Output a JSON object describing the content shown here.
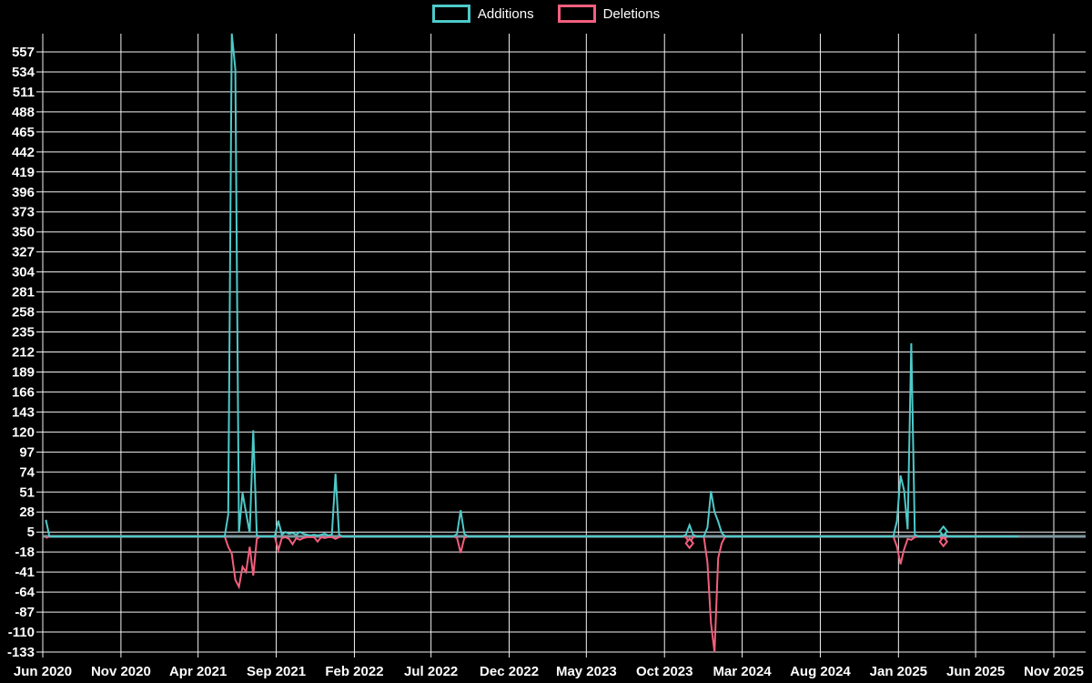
{
  "legend": {
    "items": [
      {
        "label": "Additions",
        "color": "#4ec9c9"
      },
      {
        "label": "Deletions",
        "color": "#f25f7d"
      }
    ]
  },
  "chart_data": {
    "type": "line",
    "title": "",
    "xlabel": "",
    "ylabel": "",
    "x_unit": "week",
    "x_start": "2020-06-07",
    "x_end": "2025-08-24",
    "default_value": 0,
    "grid": true,
    "legend_position": "top-center",
    "ylim": [
      -140,
      580
    ],
    "y_ticks": [
      557,
      534,
      511,
      488,
      465,
      442,
      419,
      396,
      373,
      350,
      327,
      304,
      281,
      258,
      235,
      212,
      189,
      166,
      143,
      120,
      97,
      74,
      51,
      28,
      5,
      -18,
      -41,
      -64,
      -87,
      -110,
      -133
    ],
    "x_ticks": [
      "Jun 2020",
      "Nov 2020",
      "Apr 2021",
      "Sep 2021",
      "Feb 2022",
      "Jul 2022",
      "Dec 2022",
      "May 2023",
      "Oct 2023",
      "Mar 2024",
      "Aug 2024",
      "Jan 2025",
      "Jun 2025",
      "Nov 2025"
    ],
    "series": [
      {
        "name": "Additions",
        "color": "#4ec9c9"
      },
      {
        "name": "Deletions",
        "color": "#f25f7d"
      }
    ],
    "nonzero_weeks": [
      {
        "date": "2020-06-07",
        "additions": 19,
        "deletions": -2
      },
      {
        "date": "2021-05-30",
        "additions": 25,
        "deletions": -12
      },
      {
        "date": "2021-06-06",
        "additions": 578,
        "deletions": -20
      },
      {
        "date": "2021-06-13",
        "additions": 537,
        "deletions": -50
      },
      {
        "date": "2021-06-20",
        "additions": 5,
        "deletions": -58
      },
      {
        "date": "2021-06-27",
        "additions": 50,
        "deletions": -35
      },
      {
        "date": "2021-07-04",
        "additions": 27,
        "deletions": -41
      },
      {
        "date": "2021-07-11",
        "additions": 4,
        "deletions": -12
      },
      {
        "date": "2021-07-18",
        "additions": 122,
        "deletions": -45
      },
      {
        "date": "2021-07-25",
        "additions": 1,
        "deletions": -3
      },
      {
        "date": "2021-09-05",
        "additions": 18,
        "deletions": -16
      },
      {
        "date": "2021-09-12",
        "additions": 2,
        "deletions": -2
      },
      {
        "date": "2021-09-19",
        "additions": 5,
        "deletions": -1
      },
      {
        "date": "2021-09-26",
        "additions": 3,
        "deletions": -3
      },
      {
        "date": "2021-10-03",
        "additions": 4,
        "deletions": -9
      },
      {
        "date": "2021-10-10",
        "additions": 2,
        "deletions": -2
      },
      {
        "date": "2021-10-17",
        "additions": 5,
        "deletions": -4
      },
      {
        "date": "2021-10-24",
        "additions": 3,
        "deletions": -2
      },
      {
        "date": "2021-10-31",
        "additions": 2,
        "deletions": -1
      },
      {
        "date": "2021-11-07",
        "additions": 1,
        "deletions": -1
      },
      {
        "date": "2021-11-14",
        "additions": 2,
        "deletions": -1
      },
      {
        "date": "2021-11-21",
        "additions": 1,
        "deletions": -6
      },
      {
        "date": "2021-11-28",
        "additions": 2,
        "deletions": -1
      },
      {
        "date": "2021-12-05",
        "additions": 3,
        "deletions": -2
      },
      {
        "date": "2021-12-12",
        "additions": 1,
        "deletions": -1
      },
      {
        "date": "2021-12-19",
        "additions": 2,
        "deletions": -1
      },
      {
        "date": "2021-12-26",
        "additions": 72,
        "deletions": -3
      },
      {
        "date": "2022-01-02",
        "additions": 2,
        "deletions": -1
      },
      {
        "date": "2022-08-21",
        "additions": 3,
        "deletions": -2
      },
      {
        "date": "2022-08-28",
        "additions": 30,
        "deletions": -19
      },
      {
        "date": "2022-09-04",
        "additions": 3,
        "deletions": -2
      },
      {
        "date": "2023-11-12",
        "additions": 2,
        "deletions": -1
      },
      {
        "date": "2023-11-19",
        "additions": 13,
        "deletions": -8
      },
      {
        "date": "2023-11-26",
        "additions": 2,
        "deletions": -1
      },
      {
        "date": "2023-12-24",
        "additions": 10,
        "deletions": -30
      },
      {
        "date": "2023-12-31",
        "additions": 52,
        "deletions": -100
      },
      {
        "date": "2024-01-07",
        "additions": 28,
        "deletions": -133
      },
      {
        "date": "2024-01-14",
        "additions": 17,
        "deletions": -25
      },
      {
        "date": "2024-01-21",
        "additions": 4,
        "deletions": -8
      },
      {
        "date": "2024-12-29",
        "additions": 18,
        "deletions": -12
      },
      {
        "date": "2025-01-05",
        "additions": 70,
        "deletions": -32
      },
      {
        "date": "2025-01-12",
        "additions": 53,
        "deletions": -15
      },
      {
        "date": "2025-01-19",
        "additions": 8,
        "deletions": -3
      },
      {
        "date": "2025-01-26",
        "additions": 222,
        "deletions": -4
      },
      {
        "date": "2025-02-02",
        "additions": 2,
        "deletions": -1
      },
      {
        "date": "2025-03-30",
        "additions": 6,
        "deletions": -6
      }
    ],
    "markers": [
      {
        "date": "2023-11-19",
        "series": "Deletions",
        "value": -8
      },
      {
        "date": "2025-03-30",
        "series": "Additions",
        "value": 6
      },
      {
        "date": "2025-03-30",
        "series": "Deletions",
        "value": -6
      }
    ],
    "colors": {
      "background": "#000000",
      "grid": "#f2f2f2",
      "text": "#ffffff",
      "zero_line": "#7f99a1",
      "additions": "#4ec9c9",
      "deletions": "#f25f7d"
    }
  }
}
